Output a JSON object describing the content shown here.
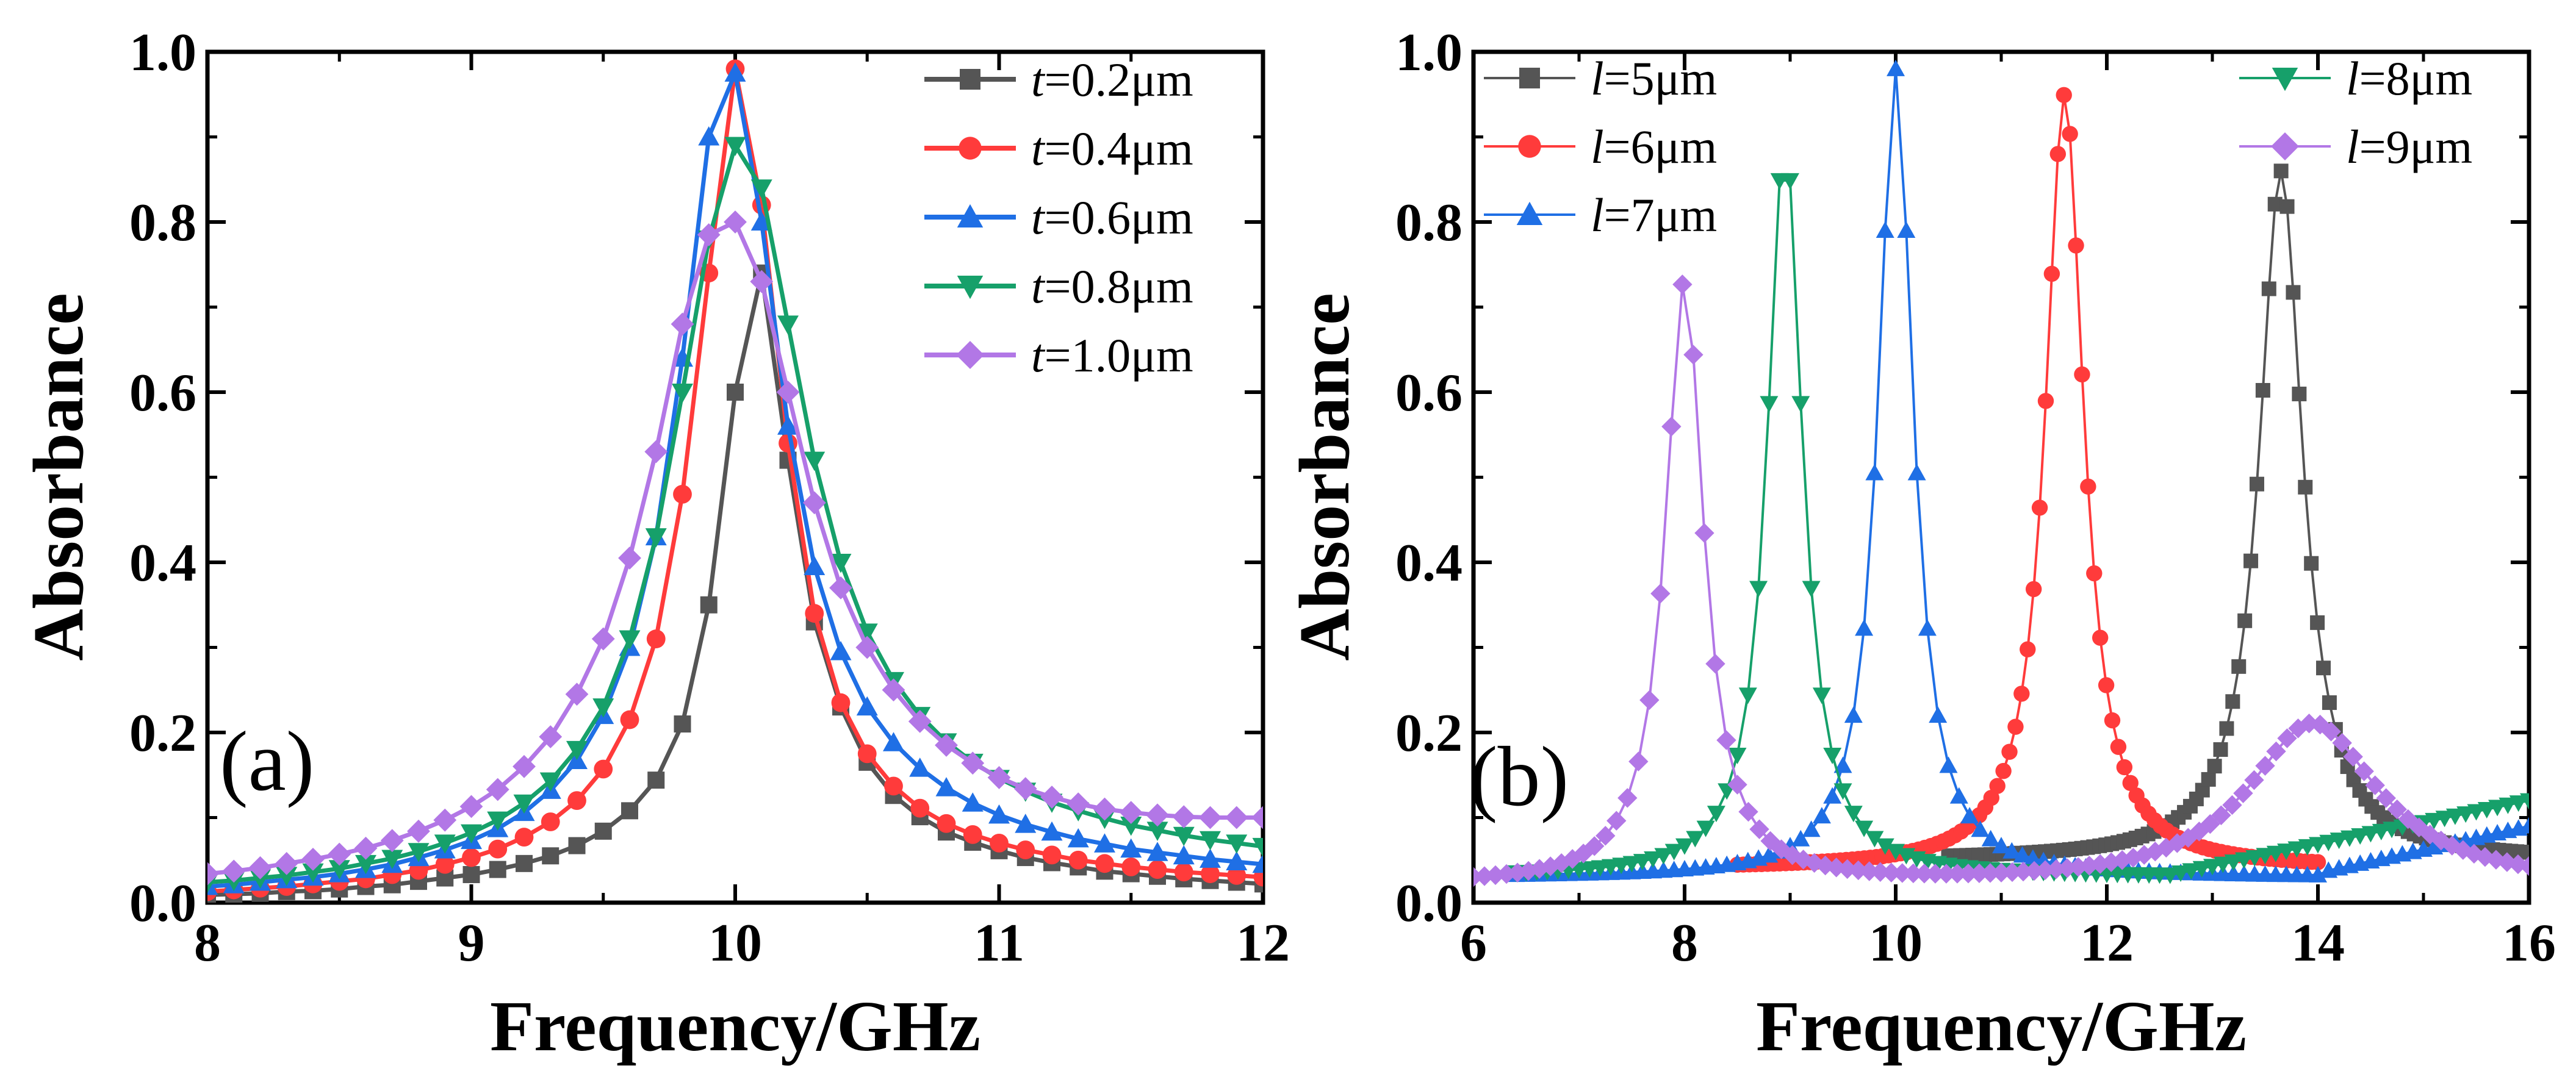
{
  "figure": {
    "panels": [
      {
        "label": "(a)",
        "xlabel": "Frequency/GHz",
        "ylabel": "Absorbance",
        "xticks": [
          "8",
          "9",
          "10",
          "11",
          "12"
        ],
        "yticks": [
          "0.0",
          "0.2",
          "0.4",
          "0.6",
          "0.8",
          "1.0"
        ]
      },
      {
        "label": "(b)",
        "xlabel": "Frequency/GHz",
        "ylabel": "Absorbance",
        "xticks": [
          "6",
          "8",
          "10",
          "12",
          "14",
          "16"
        ],
        "yticks": [
          "0.0",
          "0.2",
          "0.4",
          "0.6",
          "0.8",
          "1.0"
        ]
      }
    ]
  },
  "chart_data": [
    {
      "type": "line",
      "panel_label": "(a)",
      "title": "",
      "xlabel": "Frequency/GHz",
      "ylabel": "Absorbance",
      "xlim": [
        8,
        12
      ],
      "ylim": [
        0,
        1.0
      ],
      "x_step": 0.1,
      "grid": false,
      "legend_position": "top-right",
      "series": [
        {
          "name": "t=0.2μm",
          "legend_var": "t",
          "legend_rest": "=0.2μm",
          "color": "#555555",
          "marker": "square",
          "values": [
            0.009,
            0.01,
            0.011,
            0.013,
            0.014,
            0.016,
            0.019,
            0.021,
            0.025,
            0.029,
            0.033,
            0.039,
            0.046,
            0.055,
            0.067,
            0.084,
            0.108,
            0.144,
            0.21,
            0.35,
            0.6,
            0.74,
            0.52,
            0.33,
            0.23,
            0.165,
            0.126,
            0.101,
            0.083,
            0.071,
            0.061,
            0.053,
            0.047,
            0.042,
            0.037,
            0.034,
            0.031,
            0.028,
            0.026,
            0.024,
            0.022
          ]
        },
        {
          "name": "t=0.4μm",
          "legend_var": "t",
          "legend_rest": "=0.4μm",
          "color": "#ff3b3b",
          "marker": "circle",
          "values": [
            0.013,
            0.015,
            0.017,
            0.019,
            0.022,
            0.025,
            0.028,
            0.033,
            0.038,
            0.045,
            0.053,
            0.063,
            0.077,
            0.095,
            0.12,
            0.157,
            0.215,
            0.31,
            0.48,
            0.74,
            0.98,
            0.82,
            0.54,
            0.34,
            0.235,
            0.175,
            0.137,
            0.111,
            0.093,
            0.08,
            0.07,
            0.062,
            0.056,
            0.05,
            0.046,
            0.042,
            0.039,
            0.036,
            0.034,
            0.032,
            0.03
          ]
        },
        {
          "name": "t=0.6μm",
          "legend_var": "t",
          "legend_rest": "=0.6μm",
          "color": "#1f6fe5",
          "marker": "triangle-up",
          "values": [
            0.019,
            0.021,
            0.024,
            0.027,
            0.03,
            0.034,
            0.039,
            0.045,
            0.053,
            0.062,
            0.073,
            0.087,
            0.106,
            0.132,
            0.167,
            0.22,
            0.3,
            0.43,
            0.64,
            0.9,
            0.975,
            0.8,
            0.56,
            0.395,
            0.295,
            0.23,
            0.188,
            0.158,
            0.135,
            0.117,
            0.103,
            0.092,
            0.083,
            0.075,
            0.069,
            0.063,
            0.059,
            0.055,
            0.051,
            0.048,
            0.045
          ]
        },
        {
          "name": "t=0.8μm",
          "legend_var": "t",
          "legend_rest": "=0.8μm",
          "color": "#16a06a",
          "marker": "triangle-down",
          "values": [
            0.024,
            0.026,
            0.029,
            0.032,
            0.036,
            0.04,
            0.046,
            0.052,
            0.06,
            0.07,
            0.082,
            0.097,
            0.117,
            0.143,
            0.18,
            0.23,
            0.31,
            0.43,
            0.6,
            0.78,
            0.89,
            0.84,
            0.68,
            0.52,
            0.4,
            0.318,
            0.261,
            0.22,
            0.189,
            0.165,
            0.146,
            0.131,
            0.118,
            0.108,
            0.099,
            0.091,
            0.085,
            0.079,
            0.074,
            0.07,
            0.066
          ]
        },
        {
          "name": "t=1.0μm",
          "legend_var": "t",
          "legend_rest": "=1.0μm",
          "color": "#b277e6",
          "marker": "diamond",
          "values": [
            0.034,
            0.037,
            0.041,
            0.046,
            0.051,
            0.057,
            0.064,
            0.073,
            0.084,
            0.097,
            0.113,
            0.133,
            0.16,
            0.195,
            0.245,
            0.31,
            0.405,
            0.53,
            0.68,
            0.785,
            0.8,
            0.73,
            0.6,
            0.47,
            0.37,
            0.3,
            0.25,
            0.213,
            0.185,
            0.164,
            0.147,
            0.134,
            0.124,
            0.116,
            0.11,
            0.106,
            0.103,
            0.101,
            0.1,
            0.1,
            0.1
          ]
        }
      ]
    },
    {
      "type": "line",
      "panel_label": "(b)",
      "title": "",
      "xlabel": "Frequency/GHz",
      "ylabel": "Absorbance",
      "xlim": [
        6,
        16
      ],
      "ylim": [
        0,
        1.0
      ],
      "grid": false,
      "legend_position": "top",
      "series": [
        {
          "name": "l=5μm",
          "legend_var": "l",
          "legend_rest": "=5μm",
          "color": "#555555",
          "marker": "square",
          "x0": 10.5,
          "x1": 16,
          "peak": 13.65,
          "amp": 0.86,
          "hw": 0.25,
          "floor": 0.05
        },
        {
          "name": "l=6μm",
          "legend_var": "l",
          "legend_rest": "=6μm",
          "color": "#ff3b3b",
          "marker": "circle",
          "x0": 8.5,
          "x1": 14,
          "peak": 11.6,
          "amp": 0.95,
          "hw": 0.22,
          "floor": 0.04
        },
        {
          "name": "l=7μm",
          "legend_var": "l",
          "legend_rest": "=7μm",
          "color": "#1f6fe5",
          "marker": "triangle-up",
          "x0": 6.4,
          "x1": 16,
          "peak": 10.0,
          "amp": 0.98,
          "hw": 0.2,
          "floor": 0.03,
          "tail": [
            14.0,
            0.035,
            16.0,
            0.09
          ]
        },
        {
          "name": "l=8μm",
          "legend_var": "l",
          "legend_rest": "=8μm",
          "color": "#16a06a",
          "marker": "triangle-down",
          "x0": 6.4,
          "x1": 16,
          "peak": 8.95,
          "amp": 0.9,
          "hw": 0.2,
          "floor": 0.03,
          "tail": [
            12.5,
            0.03,
            16.0,
            0.12
          ]
        },
        {
          "name": "l=9μm",
          "legend_var": "l",
          "legend_rest": "=9μm",
          "color": "#b277e6",
          "marker": "diamond",
          "x0": 6.0,
          "x1": 16,
          "peak": 8.0,
          "amp": 0.73,
          "hw": 0.22,
          "floor": 0.02,
          "peak2": 13.95,
          "amp2": 0.19,
          "hw2": 0.75
        }
      ]
    }
  ]
}
